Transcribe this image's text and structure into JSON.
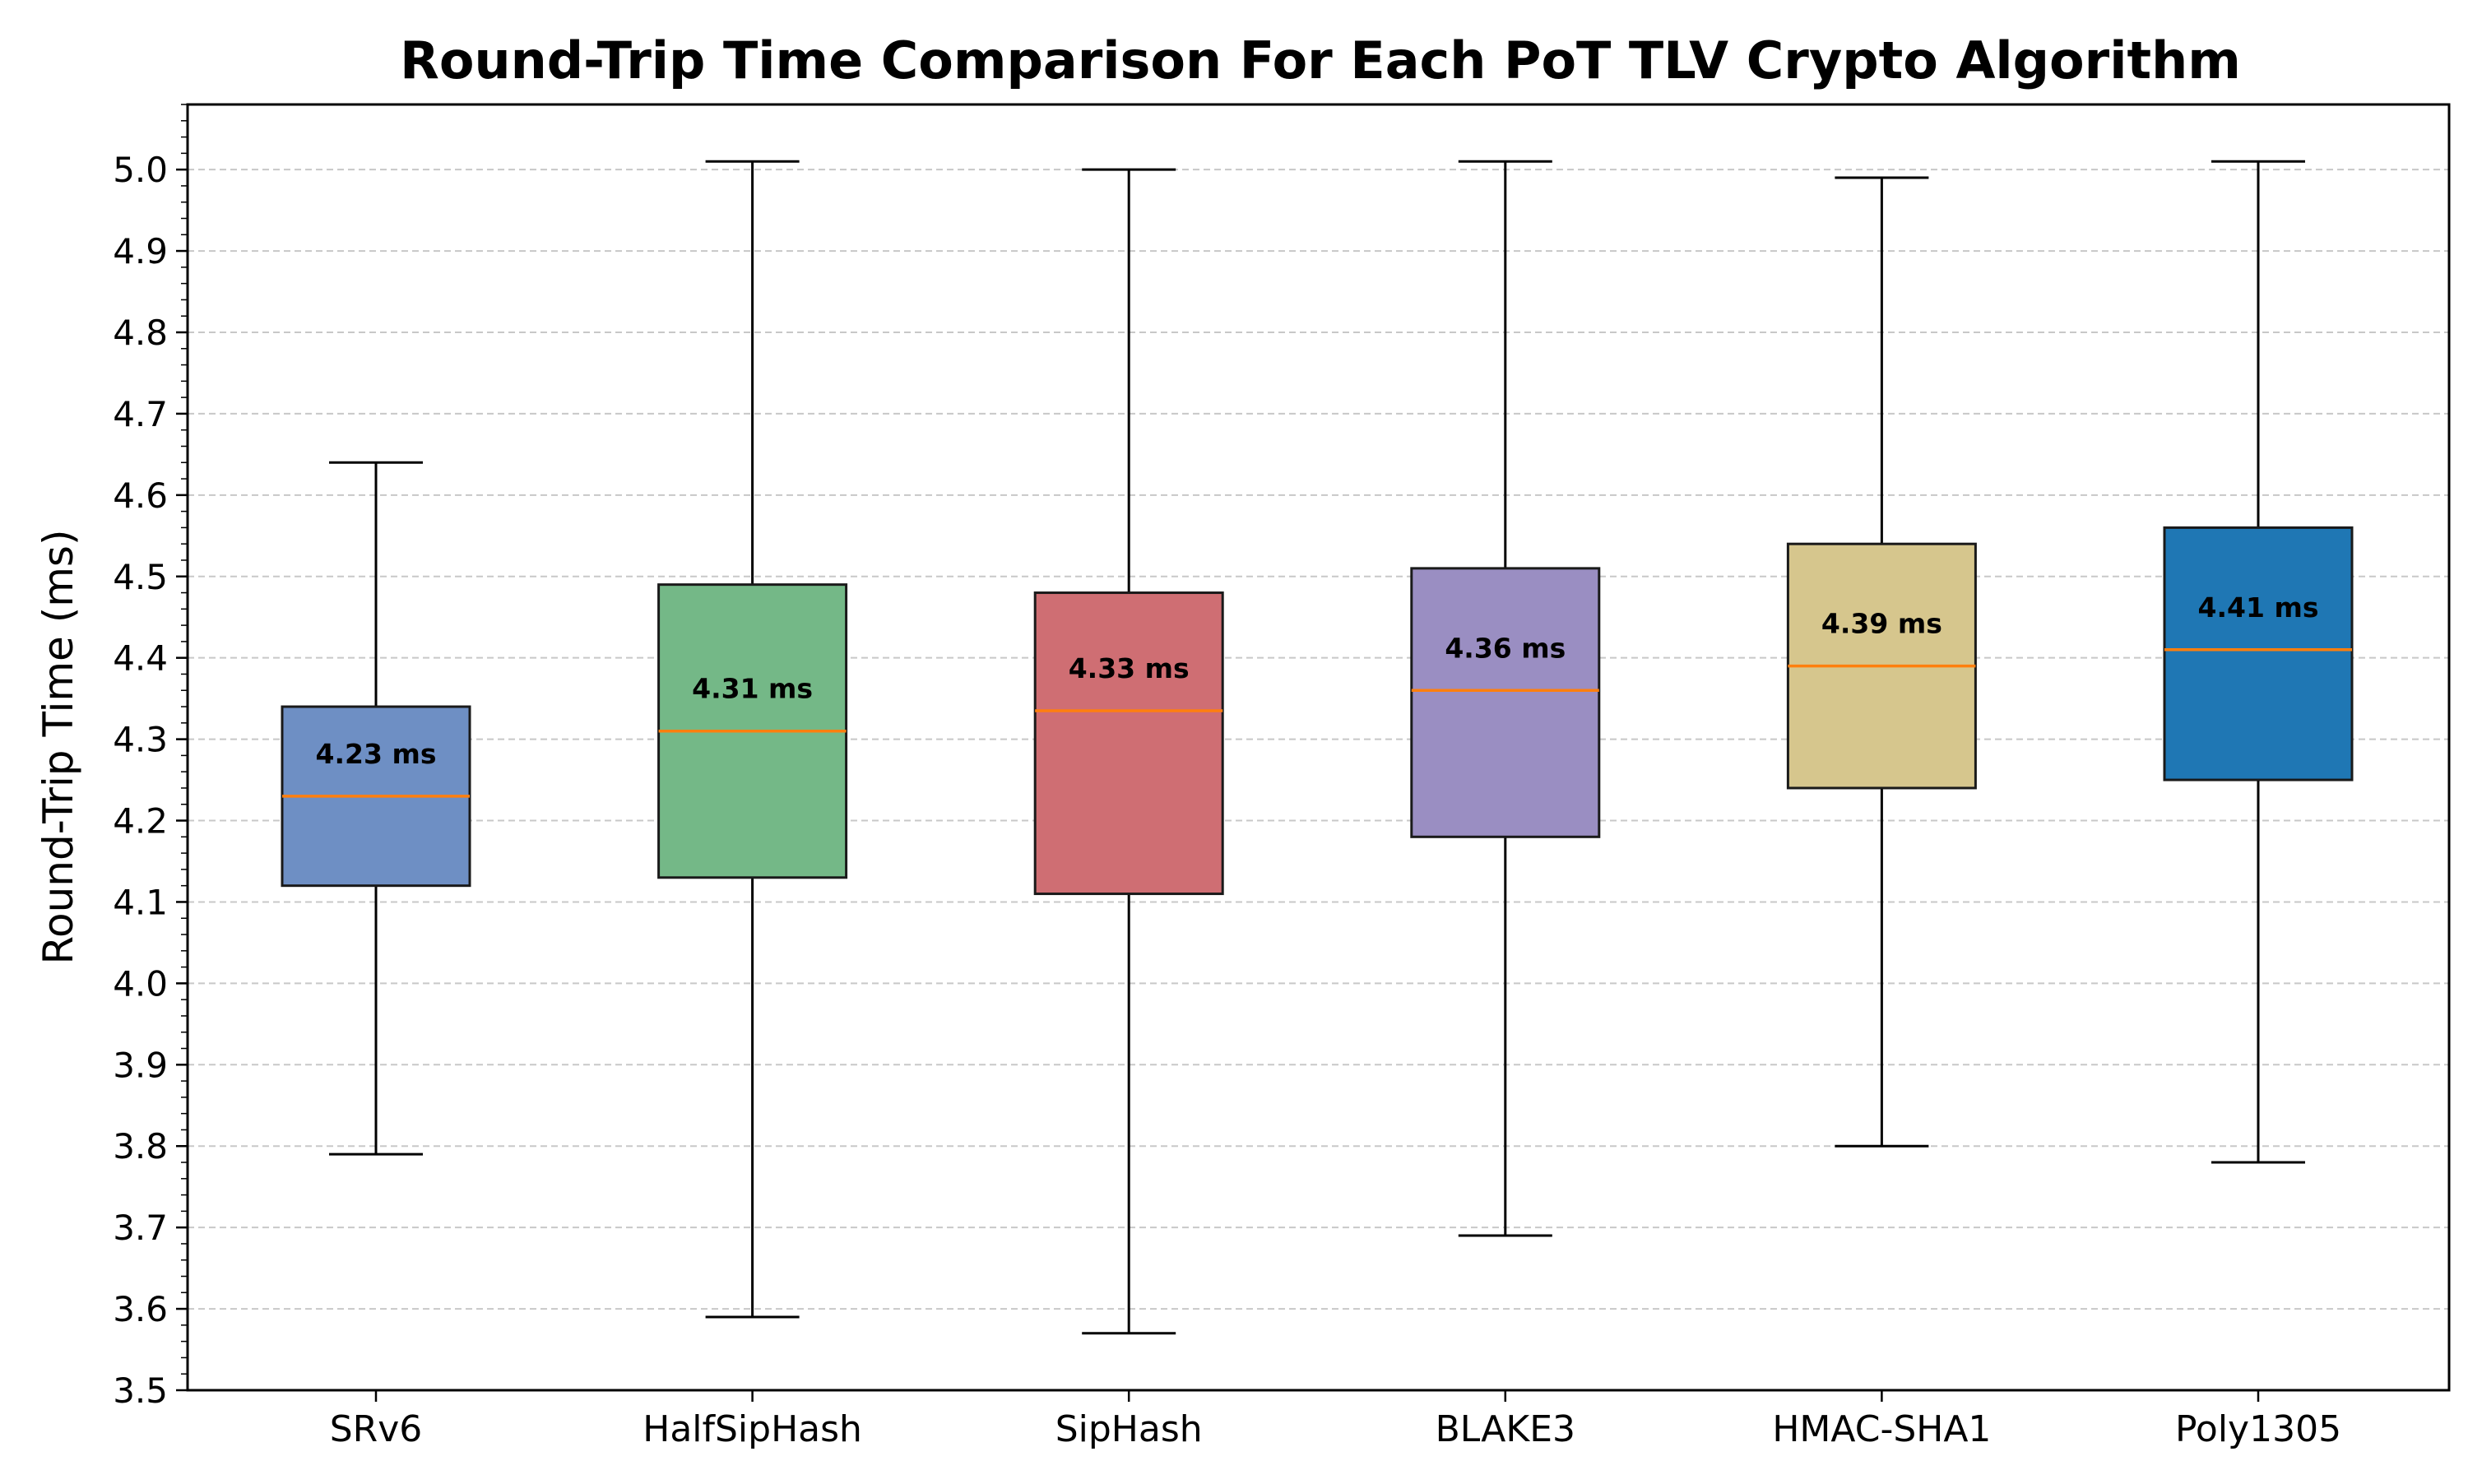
{
  "chart_data": {
    "type": "box",
    "title": "Round-Trip Time Comparison For Each PoT TLV Crypto Algorithm",
    "xlabel": "",
    "ylabel": "Round-Trip Time (ms)",
    "ylim": [
      3.5,
      5.08
    ],
    "yticks": [
      3.5,
      3.6,
      3.7,
      3.8,
      3.9,
      4.0,
      4.1,
      4.2,
      4.3,
      4.4,
      4.5,
      4.6,
      4.7,
      4.8,
      4.9,
      5.0
    ],
    "ytick_labels": [
      "3.5",
      "3.6",
      "3.7",
      "3.8",
      "3.9",
      "4.0",
      "4.1",
      "4.2",
      "4.3",
      "4.4",
      "4.5",
      "4.6",
      "4.7",
      "4.8",
      "4.9",
      "5.0"
    ],
    "grid": true,
    "categories": [
      "SRv6",
      "HalfSipHash",
      "SipHash",
      "BLAKE3",
      "HMAC-SHA1",
      "Poly1305"
    ],
    "boxes": [
      {
        "name": "SRv6",
        "whisker_low": 3.79,
        "q1": 4.12,
        "median": 4.23,
        "q3": 4.34,
        "whisker_high": 4.64,
        "label": "4.23 ms",
        "color": "#6e8fc4"
      },
      {
        "name": "HalfSipHash",
        "whisker_low": 3.59,
        "q1": 4.13,
        "median": 4.31,
        "q3": 4.49,
        "whisker_high": 5.01,
        "label": "4.31 ms",
        "color": "#74b887"
      },
      {
        "name": "SipHash",
        "whisker_low": 3.57,
        "q1": 4.11,
        "median": 4.335,
        "q3": 4.48,
        "whisker_high": 5.0,
        "label": "4.33 ms",
        "color": "#cf6e73"
      },
      {
        "name": "BLAKE3",
        "whisker_low": 3.69,
        "q1": 4.18,
        "median": 4.36,
        "q3": 4.51,
        "whisker_high": 5.01,
        "label": "4.36 ms",
        "color": "#9a8ec2"
      },
      {
        "name": "HMAC-SHA1",
        "whisker_low": 3.8,
        "q1": 4.24,
        "median": 4.39,
        "q3": 4.54,
        "whisker_high": 4.99,
        "label": "4.39 ms",
        "color": "#d6c68d"
      },
      {
        "name": "Poly1305",
        "whisker_low": 3.78,
        "q1": 4.25,
        "median": 4.41,
        "q3": 4.56,
        "whisker_high": 5.01,
        "label": "4.41 ms",
        "color": "#1f77b4"
      }
    ],
    "median_color": "#ff7f0e"
  }
}
